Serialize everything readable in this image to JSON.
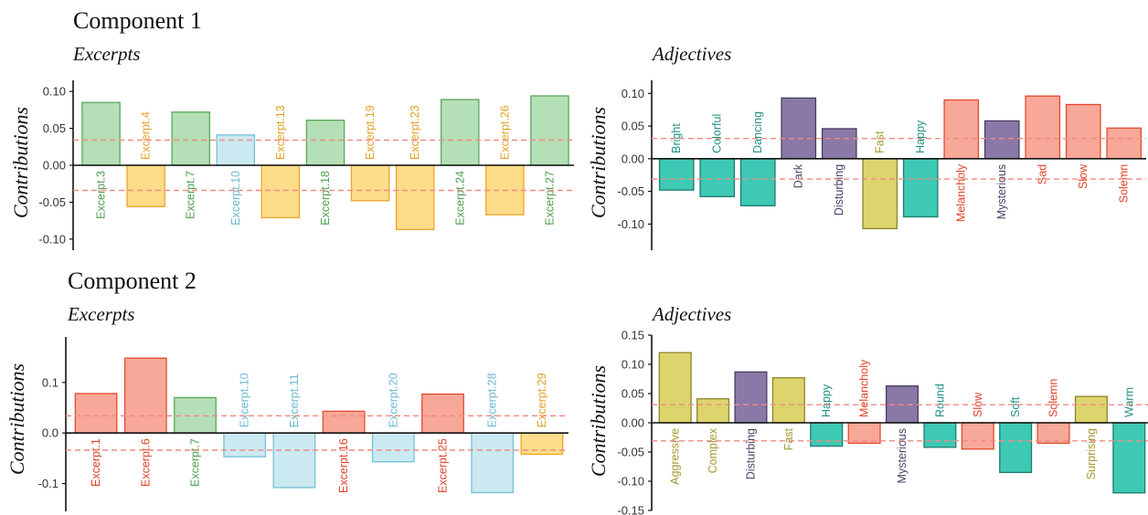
{
  "headers": {
    "component1": "Component 1",
    "component2": "Component 2"
  },
  "chart_data": [
    {
      "type": "bar",
      "title": "Excerpts",
      "ylabel": "Contributions",
      "ylim": [
        -0.115,
        0.115
      ],
      "yticks": [
        0.1,
        0.05,
        0.0,
        -0.05,
        -0.1
      ],
      "tick_labels": [
        "0.10",
        "0.05",
        "0.00",
        "-0.05",
        "-0.10"
      ],
      "threshold": 0.034,
      "categories": [
        "Excerpt.3",
        "Excerpt.4",
        "Excerpt.7",
        "Excerpt.10",
        "Excerpt.13",
        "Excerpt.18",
        "Excerpt.19",
        "Excerpt.23",
        "Excerpt.24",
        "Excerpt.26",
        "Excerpt.27"
      ],
      "values": [
        0.085,
        -0.056,
        0.072,
        0.041,
        -0.071,
        0.061,
        -0.048,
        -0.087,
        0.089,
        -0.067,
        0.094
      ],
      "groups": [
        "green",
        "orange",
        "green",
        "blue",
        "orange",
        "green",
        "orange",
        "orange",
        "green",
        "orange",
        "green"
      ]
    },
    {
      "type": "bar",
      "title": "Adjectives",
      "ylabel": "Contributions",
      "ylim": [
        -0.14,
        0.12
      ],
      "yticks": [
        0.1,
        0.05,
        0.0,
        -0.05,
        -0.1
      ],
      "tick_labels": [
        "0.10",
        "0.05",
        "0.00",
        "-0.05",
        "-0.10"
      ],
      "threshold": 0.031,
      "categories": [
        "Bright",
        "Colorful",
        "Dancing",
        "Dark",
        "Disturbing",
        "Fast",
        "Happy",
        "Melancholy",
        "Mysterious",
        "Sad",
        "Slow",
        "Solemn"
      ],
      "values": [
        -0.048,
        -0.058,
        -0.072,
        0.093,
        0.046,
        -0.107,
        -0.089,
        0.09,
        0.058,
        0.096,
        0.083,
        0.047
      ],
      "groups": [
        "teal",
        "teal",
        "teal",
        "purple",
        "purple",
        "yellow",
        "teal",
        "red",
        "purple",
        "red",
        "red",
        "red"
      ]
    },
    {
      "type": "bar",
      "title": "Excerpts",
      "ylabel": "Contributions",
      "ylim": [
        -0.155,
        0.19
      ],
      "yticks": [
        0.1,
        0.0,
        -0.1
      ],
      "tick_labels": [
        "0.1",
        "0.0",
        "-0.1"
      ],
      "threshold": 0.034,
      "categories": [
        "Excerpt.1",
        "Excerpt.6",
        "Excerpt.7",
        "Excerpt.10",
        "Excerpt.11",
        "Excerpt.16",
        "Excerpt.20",
        "Excerpt.25",
        "Excerpt.28",
        "Excerpt.29"
      ],
      "values": [
        0.078,
        0.148,
        0.07,
        -0.047,
        -0.108,
        0.043,
        -0.057,
        0.077,
        -0.118,
        -0.042
      ],
      "groups": [
        "red",
        "red",
        "green",
        "blue",
        "blue",
        "red",
        "blue",
        "red",
        "blue",
        "orange"
      ]
    },
    {
      "type": "bar",
      "title": "Adjectives",
      "ylabel": "Contributions",
      "ylim": [
        -0.15,
        0.15
      ],
      "yticks": [
        0.15,
        0.1,
        0.05,
        0.0,
        -0.05,
        -0.1,
        -0.15
      ],
      "tick_labels": [
        "0.15",
        "0.10",
        "0.05",
        "0.00",
        "-0.05",
        "-0.10",
        "-0.15"
      ],
      "threshold": 0.031,
      "categories": [
        "Aggressive",
        "Complex",
        "Disturbing",
        "Fast",
        "Happy",
        "Melancholy",
        "Mysterious",
        "Round",
        "Slow",
        "Soft",
        "Solemn",
        "Surprising",
        "Warm"
      ],
      "values": [
        0.12,
        0.041,
        0.087,
        0.077,
        -0.04,
        -0.035,
        0.063,
        -0.042,
        -0.045,
        -0.085,
        -0.035,
        0.045,
        -0.12
      ],
      "groups": [
        "yellow",
        "yellow",
        "purple",
        "yellow",
        "teal",
        "red",
        "purple",
        "teal",
        "red",
        "teal",
        "red",
        "yellow",
        "teal"
      ]
    }
  ],
  "palette": {
    "green": {
      "fill": "#b5dfb6",
      "stroke": "#5aa85c",
      "text": "#4e9e50"
    },
    "orange": {
      "fill": "#fddc8a",
      "stroke": "#eaa62a",
      "text": "#e3a126"
    },
    "blue": {
      "fill": "#cbe9f1",
      "stroke": "#73c1d6",
      "text": "#6ab8d0"
    },
    "teal": {
      "fill": "#3ec9b4",
      "stroke": "#1f7d6f",
      "text": "#21907f"
    },
    "purple": {
      "fill": "#8a78a6",
      "stroke": "#4a3d62",
      "text": "#4c3f66"
    },
    "yellow": {
      "fill": "#ddd46e",
      "stroke": "#8c852a",
      "text": "#a29a2e"
    },
    "red": {
      "fill": "#f8a898",
      "stroke": "#e04b2f",
      "text": "#e0432a"
    },
    "crimson": {
      "fill": "#f98a8a",
      "stroke": "#d5202c",
      "text": "#d8202a"
    },
    "threshold_line": "#f28b82",
    "axis": "#111111"
  }
}
